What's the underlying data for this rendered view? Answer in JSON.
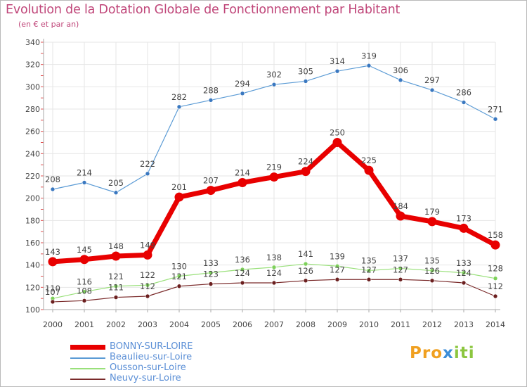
{
  "title": "Evolution de la Dotation Globale de Fonctionnement par Habitant",
  "subtitle": "(en € et par an)",
  "logo": {
    "part1": "Pro",
    "part2": "x",
    "part3": "iti"
  },
  "colors": {
    "title": "#c0477a",
    "axis": "#aaaaaa",
    "grid": "#e6e6e6",
    "label": "#444444",
    "legend_text": "#5b8fd6"
  },
  "chart_data": {
    "type": "line",
    "x": [
      "2000",
      "2001",
      "2002",
      "2003",
      "2004",
      "2005",
      "2006",
      "2007",
      "2008",
      "2009",
      "2010",
      "2011",
      "2012",
      "2013",
      "2014"
    ],
    "ylim": [
      100,
      340
    ],
    "yticks": [
      100,
      120,
      140,
      160,
      180,
      200,
      220,
      240,
      260,
      280,
      300,
      320,
      340
    ],
    "grid": true,
    "legend_position": "bottom-left",
    "series": [
      {
        "name": "Beaulieu-sur-Loire",
        "color": "#5b9bd5",
        "marker": "#3a78c0",
        "width": 1.2,
        "values": [
          208,
          214,
          205,
          222,
          282,
          288,
          294,
          302,
          305,
          314,
          319,
          306,
          297,
          286,
          271
        ]
      },
      {
        "name": "Ousson-sur-Loire",
        "color": "#99e07a",
        "marker": "#7dd05a",
        "width": 1.2,
        "values": [
          110,
          116,
          121,
          122,
          130,
          133,
          136,
          138,
          141,
          139,
          135,
          137,
          135,
          133,
          128
        ]
      },
      {
        "name": "Neuvy-sur-Loire",
        "color": "#7a2a2a",
        "marker": "#6b1f1f",
        "width": 1.2,
        "values": [
          107,
          108,
          111,
          112,
          121,
          123,
          124,
          124,
          126,
          127,
          127,
          127,
          126,
          124,
          112
        ]
      },
      {
        "name": "BONNY-SUR-LOIRE",
        "color": "#e80000",
        "marker": "#e80000",
        "width": 7,
        "values": [
          143,
          145,
          148,
          149,
          201,
          207,
          214,
          219,
          224,
          250,
          225,
          184,
          179,
          173,
          158
        ]
      }
    ],
    "legend_order": [
      "BONNY-SUR-LOIRE",
      "Beaulieu-sur-Loire",
      "Ousson-sur-Loire",
      "Neuvy-sur-Loire"
    ]
  }
}
